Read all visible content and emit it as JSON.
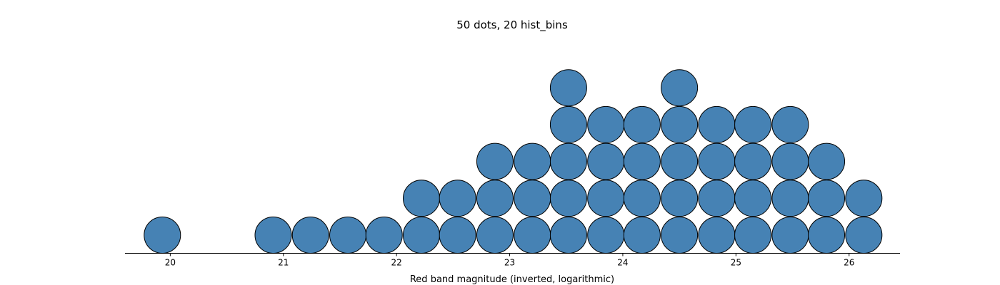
{
  "chart_data": {
    "type": "scatter",
    "title": "50 dots, 20 hist_bins",
    "xlabel": "Red band magnitude (inverted, logarithmic)",
    "ylabel": "",
    "xlim": [
      19.6,
      26.45
    ],
    "xticks": [
      {
        "value": 20,
        "label": "20"
      },
      {
        "value": 21,
        "label": "21"
      },
      {
        "value": 22,
        "label": "22"
      },
      {
        "value": 23,
        "label": "23"
      },
      {
        "value": 24,
        "label": "24"
      },
      {
        "value": 25,
        "label": "25"
      },
      {
        "value": 26,
        "label": "26"
      }
    ],
    "grid": false,
    "legend": "none",
    "stacks": [
      {
        "x": 19.93,
        "count": 1
      },
      {
        "x": 20.91,
        "count": 1
      },
      {
        "x": 21.24,
        "count": 1
      },
      {
        "x": 21.57,
        "count": 1
      },
      {
        "x": 21.89,
        "count": 1
      },
      {
        "x": 22.22,
        "count": 2
      },
      {
        "x": 22.54,
        "count": 2
      },
      {
        "x": 22.87,
        "count": 3
      },
      {
        "x": 23.2,
        "count": 3
      },
      {
        "x": 23.52,
        "count": 5
      },
      {
        "x": 23.85,
        "count": 4
      },
      {
        "x": 24.17,
        "count": 4
      },
      {
        "x": 24.5,
        "count": 5
      },
      {
        "x": 24.83,
        "count": 4
      },
      {
        "x": 25.15,
        "count": 4
      },
      {
        "x": 25.48,
        "count": 4
      },
      {
        "x": 25.8,
        "count": 3
      },
      {
        "x": 26.13,
        "count": 2
      }
    ],
    "colors": {
      "dot_fill": "#4682b4",
      "dot_edge": "#000000",
      "axis": "#000000"
    }
  }
}
